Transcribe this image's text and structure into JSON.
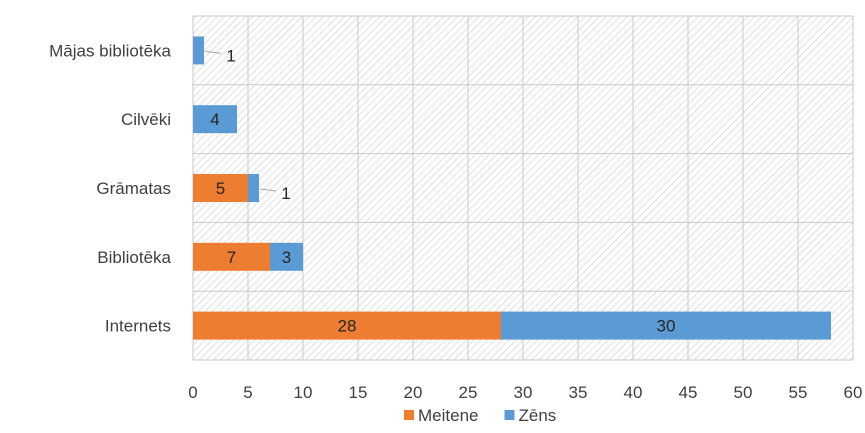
{
  "chart_data": {
    "type": "bar",
    "orientation": "horizontal",
    "stacked": true,
    "categories": [
      "Mājas bibliotēka",
      "Cilvēki",
      "Grāmatas",
      "Bibliotēka",
      "Internets"
    ],
    "series": [
      {
        "name": "Meitene",
        "color": "#ED7D31",
        "values": [
          0,
          0,
          5,
          7,
          28
        ],
        "labels": [
          "",
          "",
          "5",
          "7",
          "28"
        ]
      },
      {
        "name": "Zēns",
        "color": "#5B9BD5",
        "values": [
          1,
          4,
          1,
          3,
          30
        ],
        "labels": [
          "1",
          "4",
          "1",
          "3",
          "30"
        ]
      }
    ],
    "xlim": [
      0,
      60
    ],
    "xticks": [
      "0",
      "5",
      "10",
      "15",
      "20",
      "25",
      "30",
      "35",
      "40",
      "45",
      "50",
      "55",
      "60"
    ],
    "grid": true,
    "legend_position": "bottom",
    "plot_background": "hatched"
  }
}
